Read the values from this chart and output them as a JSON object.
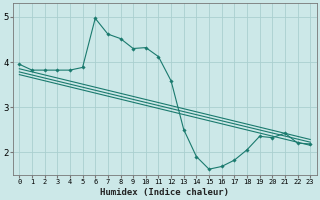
{
  "xlabel": "Humidex (Indice chaleur)",
  "bg_color": "#cce8e8",
  "grid_color": "#aacfcf",
  "line_color": "#1a7a6e",
  "xlim": [
    -0.5,
    23.5
  ],
  "ylim": [
    1.5,
    5.3
  ],
  "yticks": [
    2,
    3,
    4,
    5
  ],
  "xticks": [
    0,
    1,
    2,
    3,
    4,
    5,
    6,
    7,
    8,
    9,
    10,
    11,
    12,
    13,
    14,
    15,
    16,
    17,
    18,
    19,
    20,
    21,
    22,
    23
  ],
  "zigzag": {
    "x": [
      0,
      1,
      2,
      3,
      4,
      5,
      6,
      7,
      8,
      9,
      10,
      11,
      12,
      13,
      14,
      15,
      16,
      17,
      18,
      19,
      20,
      21,
      22,
      23
    ],
    "y": [
      3.95,
      3.82,
      3.82,
      3.82,
      3.82,
      3.88,
      4.97,
      4.62,
      4.52,
      4.3,
      4.32,
      4.12,
      3.58,
      2.5,
      1.9,
      1.62,
      1.68,
      1.82,
      2.05,
      2.35,
      2.32,
      2.42,
      2.2,
      2.18
    ]
  },
  "straight_lines": [
    {
      "x": [
        0,
        23
      ],
      "y": [
        3.85,
        2.28
      ]
    },
    {
      "x": [
        0,
        23
      ],
      "y": [
        3.78,
        2.22
      ]
    },
    {
      "x": [
        0,
        23
      ],
      "y": [
        3.72,
        2.15
      ]
    }
  ]
}
